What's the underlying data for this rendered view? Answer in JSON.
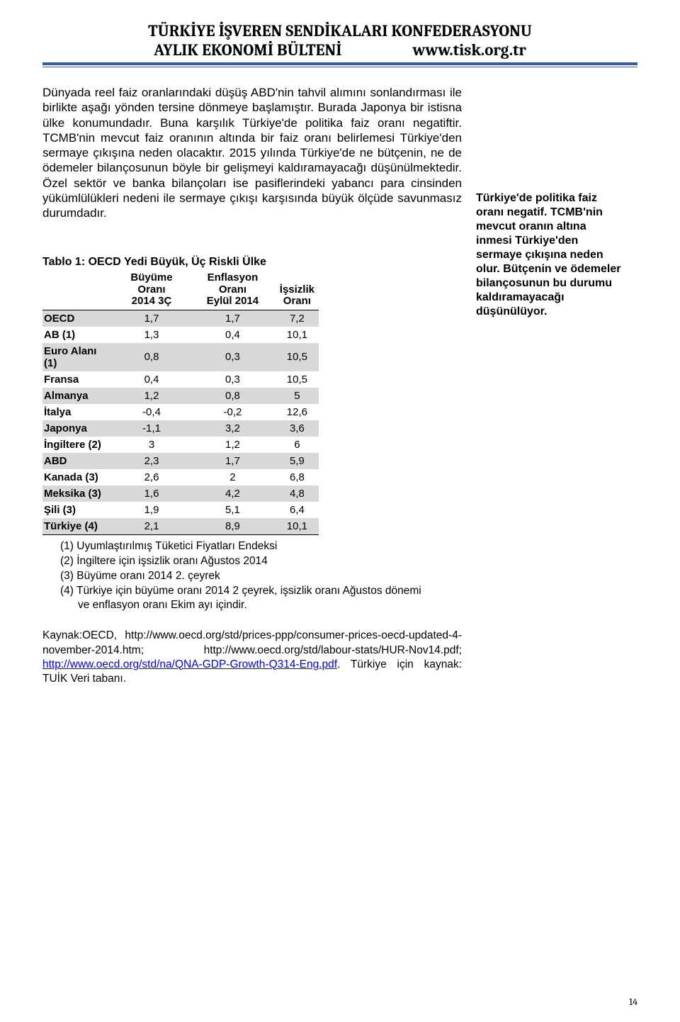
{
  "header": {
    "title": "TÜRKİYE İŞVEREN SENDİKALARI KONFEDERASYONU",
    "subtitle_left": "AYLIK EKONOMİ BÜLTENİ",
    "subtitle_right": "www.tisk.org.tr"
  },
  "main_paragraph": "Dünyada reel faiz oranlarındaki düşüş ABD'nin tahvil alımını sonlandırması ile birlikte aşağı yönden tersine dönmeye başlamıştır. Burada Japonya bir istisna ülke konumundadır. Buna karşılık Türkiye'de politika faiz oranı negatiftir. TCMB'nin mevcut faiz oranının altında bir faiz oranı belirlemesi Türkiye'den sermaye çıkışına neden olacaktır. 2015 yılında Türkiye'de ne bütçenin, ne de ödemeler bilançosunun böyle bir gelişmeyi kaldıramayacağı düşünülmektedir. Özel sektör ve banka bilançoları ise pasiflerindeki yabancı para cinsinden yükümlülükleri nedeni ile sermaye çıkışı karşısında büyük ölçüde savunmasız durumdadır.",
  "side_note": "Türkiye'de politika faiz oranı negatif. TCMB'nin mevcut oranın altına inmesi Türkiye'den sermaye çıkışına neden olur. Bütçenin ve ödemeler bilançosunun bu durumu kaldıramayacağı düşünülüyor.",
  "table": {
    "title": "Tablo 1: OECD Yedi Büyük, Üç Riskli Ülke",
    "columns": [
      "",
      "Büyüme Oranı 2014 3Ç",
      "Enflasyon Oranı Eylül 2014",
      "İşsizlik Oranı"
    ],
    "col_headers": {
      "c0": "",
      "c1_l1": "Büyüme Oranı",
      "c1_l2": "2014 3Ç",
      "c2_l1": "Enflasyon Oranı",
      "c2_l2": "Eylül 2014",
      "c3_l1": "İşsizlik",
      "c3_l2": "Oranı"
    },
    "rows": [
      {
        "label": "OECD",
        "v1": "1,7",
        "v2": "1,7",
        "v3": "7,2",
        "striped": true
      },
      {
        "label": "AB (1)",
        "v1": "1,3",
        "v2": "0,4",
        "v3": "10,1",
        "striped": false
      },
      {
        "label": "Euro Alanı (1)",
        "v1": "0,8",
        "v2": "0,3",
        "v3": "10,5",
        "striped": true
      },
      {
        "label": "Fransa",
        "v1": "0,4",
        "v2": "0,3",
        "v3": "10,5",
        "striped": false
      },
      {
        "label": "Almanya",
        "v1": "1,2",
        "v2": "0,8",
        "v3": "5",
        "striped": true
      },
      {
        "label": "İtalya",
        "v1": "-0,4",
        "v2": "-0,2",
        "v3": "12,6",
        "striped": false
      },
      {
        "label": "Japonya",
        "v1": "-1,1",
        "v2": "3,2",
        "v3": "3,6",
        "striped": true
      },
      {
        "label": "İngiltere (2)",
        "v1": "3",
        "v2": "1,2",
        "v3": "6",
        "striped": false
      },
      {
        "label": "ABD",
        "v1": "2,3",
        "v2": "1,7",
        "v3": "5,9",
        "striped": true
      },
      {
        "label": "Kanada (3)",
        "v1": "2,6",
        "v2": "2",
        "v3": "6,8",
        "striped": false
      },
      {
        "label": "Meksika (3)",
        "v1": "1,6",
        "v2": "4,2",
        "v3": "4,8",
        "striped": true
      },
      {
        "label": "Şili (3)",
        "v1": "1,9",
        "v2": "5,1",
        "v3": "6,4",
        "striped": false
      },
      {
        "label": "Türkiye (4)",
        "v1": "2,1",
        "v2": "8,9",
        "v3": "10,1",
        "striped": true
      }
    ],
    "notes": {
      "n1": "(1) Uyumlaştırılmış Tüketici Fiyatları Endeksi",
      "n2": "(2) İngiltere için işsizlik oranı Ağustos 2014",
      "n3": "(3) Büyüme oranı 2014 2. çeyrek",
      "n4a": "(4) Türkiye için büyüme oranı 2014 2 çeyrek, işsizlik oranı Ağustos dönemi",
      "n4b": "ve enflasyon oranı Ekim ayı içindir."
    }
  },
  "source": {
    "prefix": "Kaynak:OECD, http://www.oecd.org/std/prices-ppp/consumer-prices-oecd-updated-4-november-2014.htm; http://www.oecd.org/std/labour-stats/HUR-Nov14.pdf; ",
    "link_text": "http://www.oecd.org/std/na/QNA-GDP-Growth-Q314-Eng.pdf",
    "suffix": ". Türkiye için kaynak: TUİK Veri tabanı."
  },
  "page_number": "14"
}
